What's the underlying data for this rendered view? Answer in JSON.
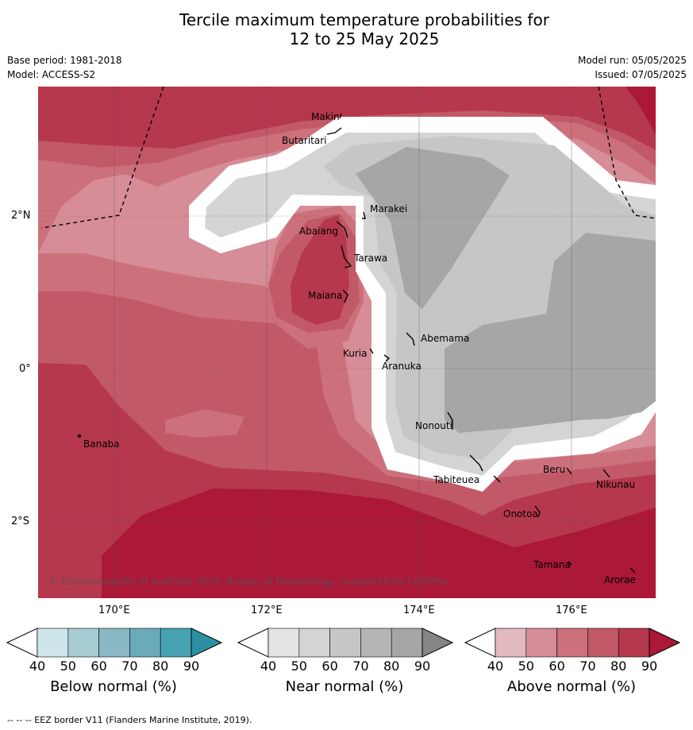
{
  "title_line1": "Tercile maximum temperature probabilities for",
  "title_line2": "12 to 25 May 2025",
  "base_period": "Base period: 1981-2018",
  "model": "Model: ACCESS-S2",
  "model_run": "Model run: 05/05/2025",
  "issued": "Issued: 07/05/2025",
  "lat_labels": [
    "2°N",
    "0°",
    "2°S"
  ],
  "lon_labels": [
    "170°E",
    "172°E",
    "174°E",
    "176°E"
  ],
  "places": [
    "Makin",
    "Butaritari",
    "Marakei",
    "Abaiang",
    "Tarawa",
    "Maiana",
    "Abemama",
    "Kuria",
    "Aranuka",
    "Banaba",
    "Nonouti",
    "Tabiteuea",
    "Beru",
    "Nikunau",
    "Onotoa",
    "Tamana",
    "Arorae"
  ],
  "copyright": "© Commonwealth of Australia 2025, Bureau of Meteorology, supported by COSPPac",
  "colorbars": [
    {
      "title": "Below normal (%)",
      "ticks": [
        "40",
        "50",
        "60",
        "70",
        "80",
        "90"
      ],
      "colors": [
        "#ffffff",
        "#cde4ea",
        "#a6cbd3",
        "#89b8c4",
        "#6baab8",
        "#47a2b1",
        "#2e8fa3"
      ]
    },
    {
      "title": "Near normal (%)",
      "ticks": [
        "40",
        "50",
        "60",
        "70",
        "80",
        "90"
      ],
      "colors": [
        "#ffffff",
        "#e3e3e3",
        "#d4d4d4",
        "#c6c6c6",
        "#b5b5b5",
        "#a6a6a6",
        "#868686"
      ]
    },
    {
      "title": "Above normal (%)",
      "ticks": [
        "40",
        "50",
        "60",
        "70",
        "80",
        "90"
      ],
      "colors": [
        "#ffffff",
        "#e1b9bf",
        "#d68d97",
        "#cc717b",
        "#c25966",
        "#b6384c",
        "#ab1838"
      ]
    }
  ],
  "footnote": "--  --  -- EEZ border V11 (Flanders Marine Institute, 2019)."
}
